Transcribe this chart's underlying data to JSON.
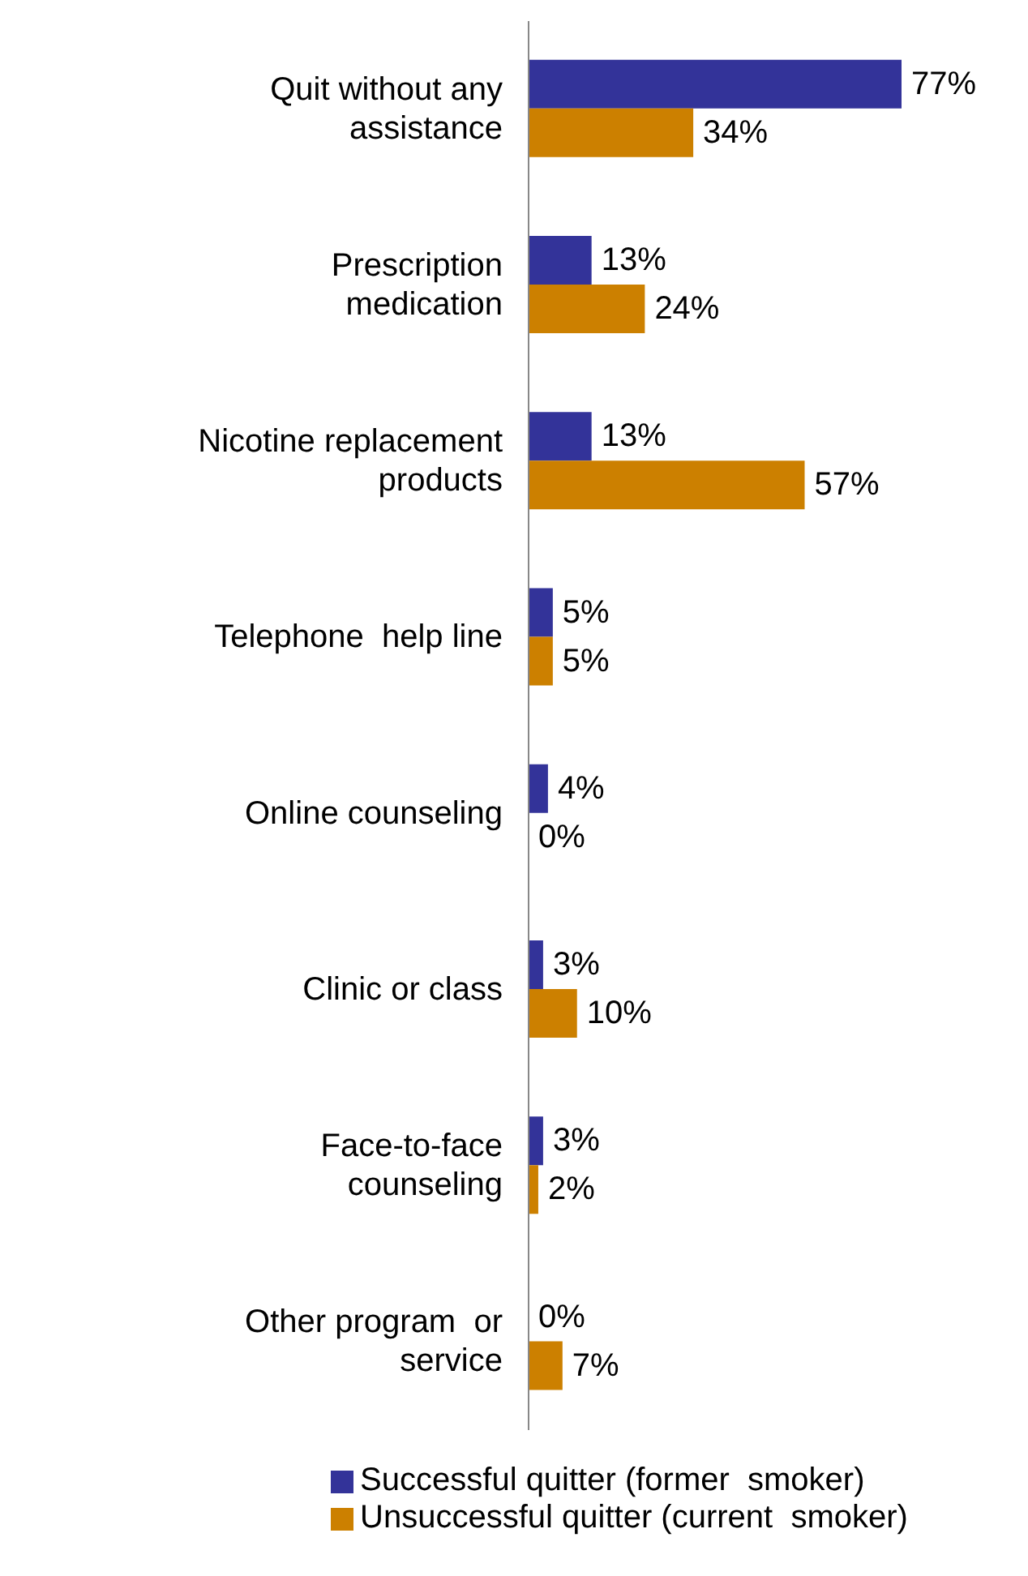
{
  "chart_data": {
    "type": "bar",
    "orientation": "horizontal",
    "categories": [
      "Quit without any assistance",
      "Prescription medication",
      "Nicotine replacement products",
      "Telephone  help line",
      "Online counseling",
      "Clinic or class",
      "Face-to-face counseling",
      "Other program  or service"
    ],
    "series": [
      {
        "name": "Successful quitter (former  smoker)",
        "color": "#333399",
        "values": [
          77,
          13,
          13,
          5,
          4,
          3,
          3,
          0
        ],
        "value_labels": [
          "77%",
          "13%",
          "13%",
          "5%",
          "4%",
          "3%",
          "3%",
          "0%"
        ]
      },
      {
        "name": "Unsuccessful quitter (current  smoker)",
        "color": "#cc8000",
        "values": [
          34,
          24,
          57,
          5,
          0,
          10,
          2,
          7
        ],
        "value_labels": [
          "34%",
          "24%",
          "57%",
          "5%",
          "0%",
          "10%",
          "2%",
          "7%"
        ]
      }
    ],
    "legend": "bottom",
    "grid": false
  }
}
